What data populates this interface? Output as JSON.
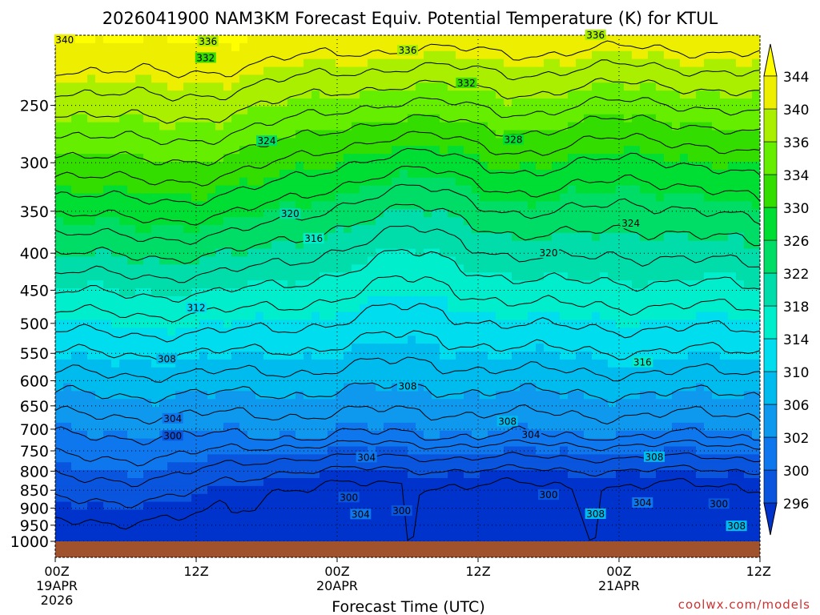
{
  "chart_data": {
    "type": "heatmap",
    "title": "2026041900 NAM3KM Forecast Equiv. Potential Temperature (K) for KTUL",
    "xlabel": "Forecast Time (UTC)",
    "ylabel": "",
    "credit": "coolwx.com/models",
    "x_ticks": [
      {
        "hour": 0,
        "label": "00Z",
        "date": "19APR",
        "year": "2026"
      },
      {
        "hour": 12,
        "label": "12Z"
      },
      {
        "hour": 24,
        "label": "00Z",
        "date": "20APR"
      },
      {
        "hour": 36,
        "label": "12Z"
      },
      {
        "hour": 48,
        "label": "00Z",
        "date": "21APR"
      },
      {
        "hour": 60,
        "label": "12Z"
      }
    ],
    "x_range_hours": [
      0,
      60
    ],
    "y_ticks": [
      250,
      300,
      350,
      400,
      450,
      500,
      550,
      600,
      650,
      700,
      750,
      800,
      850,
      900,
      950,
      1000
    ],
    "y_range_hpa": [
      200,
      1000
    ],
    "colorbar": {
      "labels": [
        296,
        300,
        302,
        306,
        310,
        314,
        318,
        322,
        326,
        330,
        334,
        336,
        340,
        344
      ],
      "colors": [
        "#0033cc",
        "#0a55dd",
        "#0f77ee",
        "#0f99ee",
        "#00bbee",
        "#00ddee",
        "#00eecc",
        "#00ddaa",
        "#00dd66",
        "#00dd33",
        "#33dd00",
        "#66ee00",
        "#aaee00",
        "#eeee00",
        "#ffff00"
      ]
    },
    "contour_levels": [
      296,
      298,
      300,
      302,
      304,
      306,
      308,
      310,
      312,
      314,
      316,
      318,
      320,
      322,
      324,
      326,
      328,
      330,
      332,
      334,
      336,
      338,
      340
    ],
    "contour_labels": [
      {
        "text": "340",
        "hour": 0.8,
        "hpa": 203
      },
      {
        "text": "336",
        "hour": 13,
        "hpa": 204
      },
      {
        "text": "332",
        "hour": 12.8,
        "hpa": 215
      },
      {
        "text": "336",
        "hour": 30,
        "hpa": 210
      },
      {
        "text": "336",
        "hour": 46,
        "hpa": 200
      },
      {
        "text": "332",
        "hour": 35,
        "hpa": 233
      },
      {
        "text": "324",
        "hour": 18,
        "hpa": 280
      },
      {
        "text": "328",
        "hour": 39,
        "hpa": 279
      },
      {
        "text": "320",
        "hour": 20,
        "hpa": 353
      },
      {
        "text": "324",
        "hour": 49,
        "hpa": 364
      },
      {
        "text": "316",
        "hour": 22,
        "hpa": 382
      },
      {
        "text": "320",
        "hour": 42,
        "hpa": 400
      },
      {
        "text": "312",
        "hour": 12,
        "hpa": 476
      },
      {
        "text": "308",
        "hour": 9.5,
        "hpa": 560
      },
      {
        "text": "316",
        "hour": 50,
        "hpa": 566
      },
      {
        "text": "308",
        "hour": 30,
        "hpa": 611
      },
      {
        "text": "304",
        "hour": 10,
        "hpa": 677
      },
      {
        "text": "308",
        "hour": 38.5,
        "hpa": 683
      },
      {
        "text": "304",
        "hour": 40.5,
        "hpa": 713
      },
      {
        "text": "300",
        "hour": 10,
        "hpa": 715
      },
      {
        "text": "304",
        "hour": 26.5,
        "hpa": 766
      },
      {
        "text": "308",
        "hour": 51,
        "hpa": 765
      },
      {
        "text": "300",
        "hour": 25,
        "hpa": 870
      },
      {
        "text": "300",
        "hour": 42,
        "hpa": 863
      },
      {
        "text": "304",
        "hour": 50,
        "hpa": 885
      },
      {
        "text": "300",
        "hour": 56.5,
        "hpa": 888
      },
      {
        "text": "300",
        "hour": 29.5,
        "hpa": 908
      },
      {
        "text": "304",
        "hour": 26,
        "hpa": 918
      },
      {
        "text": "308",
        "hour": 46,
        "hpa": 917
      },
      {
        "text": "308",
        "hour": 58,
        "hpa": 953
      }
    ],
    "grid": true
  }
}
